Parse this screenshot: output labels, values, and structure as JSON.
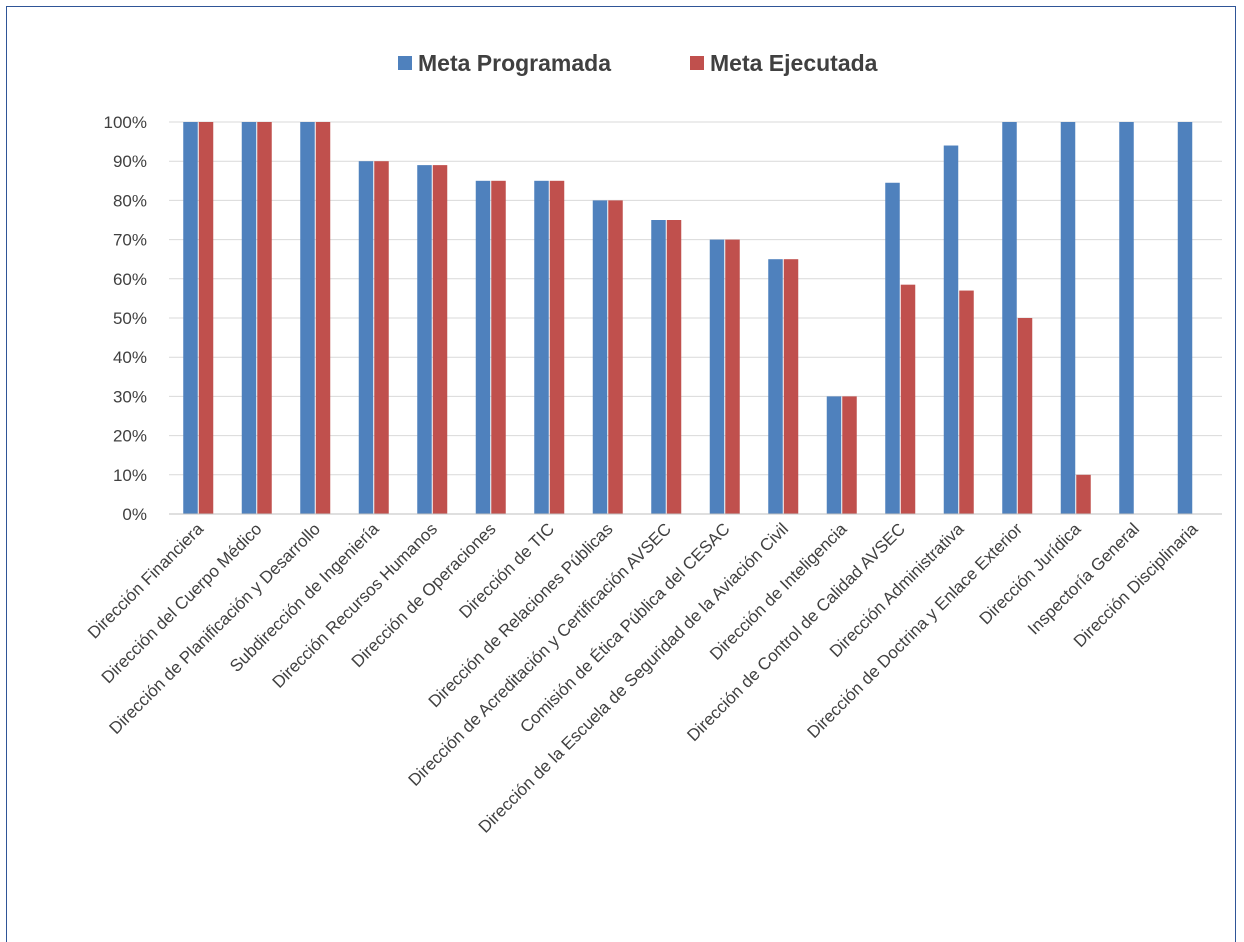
{
  "chart_data": {
    "type": "bar",
    "categories": [
      "Dirección Financiera",
      "Dirección del Cuerpo Médico",
      "Dirección de Planificación y Desarrollo",
      "Subdirección de Ingeniería",
      "Dirección Recursos Humanos",
      "Dirección de Operaciones",
      "Dirección de TIC",
      "Dirección de Relaciones Públicas",
      "Dirección de Acreditación y Certificación AVSEC",
      "Comisión de Ética Pública del CESAC",
      "Dirección de la Escuela de Seguridad de la Aviación Civil",
      "Dirección de Inteligencia",
      "Dirección de Control de Calidad AVSEC",
      "Dirección Administrativa",
      "Dirección de Doctrina y Enlace Exterior",
      "Dirección Jurídica",
      "Inspectoría General",
      "Dirección Disciplinaria"
    ],
    "series": [
      {
        "name": "Meta Programada",
        "color": "#4f81bd",
        "values": [
          100,
          100,
          100,
          90,
          89,
          85,
          85,
          80,
          75,
          70,
          65,
          30,
          84.5,
          94,
          100,
          100,
          100,
          100
        ]
      },
      {
        "name": "Meta Ejecutada",
        "color": "#c0504d",
        "values": [
          100,
          100,
          100,
          90,
          89,
          85,
          85,
          80,
          75,
          70,
          65,
          30,
          58.5,
          57,
          50,
          10,
          0,
          0
        ]
      }
    ],
    "yticks": [
      "0%",
      "10%",
      "20%",
      "30%",
      "40%",
      "50%",
      "60%",
      "70%",
      "80%",
      "90%",
      "100%"
    ],
    "ylim": [
      0,
      100
    ],
    "grid": true,
    "legend_position": "top-center",
    "title": "",
    "xlabel": "",
    "ylabel": ""
  }
}
